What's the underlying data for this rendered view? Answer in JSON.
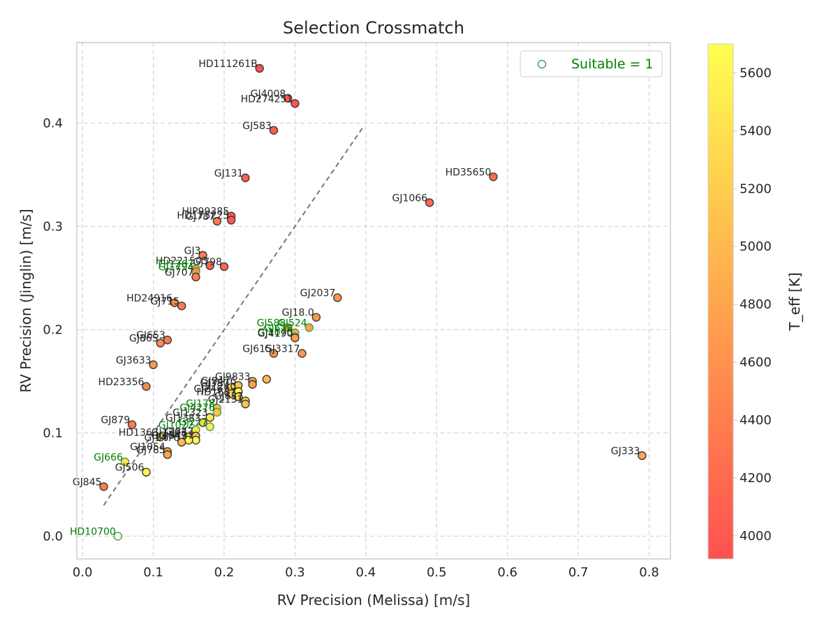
{
  "chart_data": {
    "type": "scatter",
    "title": "Selection Crossmatch",
    "xlabel": "RV Precision (Melissa) [m/s]",
    "ylabel": "RV Precision (Jinglin) [m/s]",
    "xlim": [
      -0.008,
      0.83
    ],
    "ylim": [
      -0.022,
      0.478
    ],
    "xticks": [
      "0.0",
      "0.1",
      "0.2",
      "0.3",
      "0.4",
      "0.5",
      "0.6",
      "0.7",
      "0.8"
    ],
    "yticks": [
      "0.0",
      "0.1",
      "0.2",
      "0.3",
      "0.4"
    ],
    "grid": true,
    "legend": {
      "label": "Suitable = 1",
      "placement": "upper right",
      "color": "#4a9e4a",
      "text_color": "#008000"
    },
    "colorbar": {
      "label": "T_eff [K]",
      "min": 3920,
      "max": 5700,
      "ticks": [
        "4000",
        "4200",
        "4400",
        "4600",
        "4800",
        "5000",
        "5200",
        "5400",
        "5600"
      ],
      "colors": [
        "#ff5050",
        "#ffa64d",
        "#ffff50"
      ]
    },
    "reference_line": {
      "x": [
        0.03,
        0.395
      ],
      "y": [
        0.03,
        0.395
      ],
      "style": "dashed",
      "color": "#777777"
    },
    "points": [
      {
        "x": 0.25,
        "y": 0.453,
        "teff": 3950,
        "label": "HD111261B",
        "suitable": 0
      },
      {
        "x": 0.29,
        "y": 0.424,
        "teff": 4000,
        "label": "GJ4008",
        "suitable": 0
      },
      {
        "x": 0.3,
        "y": 0.419,
        "teff": 3950,
        "label": "HD274251",
        "suitable": 0
      },
      {
        "x": 0.27,
        "y": 0.393,
        "teff": 4050,
        "label": "GJ583",
        "suitable": 0
      },
      {
        "x": 0.23,
        "y": 0.347,
        "teff": 4050,
        "label": "GJ131",
        "suitable": 0
      },
      {
        "x": 0.58,
        "y": 0.348,
        "teff": 4200,
        "label": "HD35650",
        "suitable": 0
      },
      {
        "x": 0.49,
        "y": 0.323,
        "teff": 4150,
        "label": "GJ1066",
        "suitable": 0
      },
      {
        "x": 0.21,
        "y": 0.31,
        "teff": 3950,
        "label": "HIP99385",
        "suitable": 0
      },
      {
        "x": 0.21,
        "y": 0.306,
        "teff": 4000,
        "label": "HD175225",
        "suitable": 0
      },
      {
        "x": 0.19,
        "y": 0.305,
        "teff": 4350,
        "label": "GJ787",
        "suitable": 0
      },
      {
        "x": 0.17,
        "y": 0.272,
        "teff": 4400,
        "label": "GJ3",
        "suitable": 0
      },
      {
        "x": 0.2,
        "y": 0.261,
        "teff": 4150,
        "label": "GJ798",
        "suitable": 0
      },
      {
        "x": 0.18,
        "y": 0.262,
        "teff": 4150,
        "label": "HD221503",
        "suitable": 0
      },
      {
        "x": 0.16,
        "y": 0.259,
        "teff": 4550,
        "label": "GJ1267",
        "suitable": 1
      },
      {
        "x": 0.16,
        "y": 0.256,
        "teff": 4600,
        "label": "GJ1794",
        "suitable": 1
      },
      {
        "x": 0.16,
        "y": 0.251,
        "teff": 4400,
        "label": "GJ707",
        "suitable": 0
      },
      {
        "x": 0.13,
        "y": 0.226,
        "teff": 4500,
        "label": "HD24916",
        "suitable": 0
      },
      {
        "x": 0.14,
        "y": 0.223,
        "teff": 4400,
        "label": "GJ715",
        "suitable": 0
      },
      {
        "x": 0.36,
        "y": 0.231,
        "teff": 4650,
        "label": "GJ2037",
        "suitable": 0
      },
      {
        "x": 0.33,
        "y": 0.212,
        "teff": 4650,
        "label": "GJ18.0",
        "suitable": 0
      },
      {
        "x": 0.32,
        "y": 0.202,
        "teff": 4750,
        "label": "GJ524",
        "suitable": 1
      },
      {
        "x": 0.29,
        "y": 0.202,
        "teff": 4800,
        "label": "GJ588",
        "suitable": 1
      },
      {
        "x": 0.3,
        "y": 0.197,
        "teff": 4850,
        "label": "GJ638",
        "suitable": 1
      },
      {
        "x": 0.3,
        "y": 0.193,
        "teff": 4700,
        "label": "GJ1070",
        "suitable": 1
      },
      {
        "x": 0.3,
        "y": 0.192,
        "teff": 4700,
        "label": "GJ4190",
        "suitable": 0
      },
      {
        "x": 0.27,
        "y": 0.177,
        "teff": 4700,
        "label": "GJ615",
        "suitable": 0
      },
      {
        "x": 0.31,
        "y": 0.177,
        "teff": 4650,
        "label": "GJ3317",
        "suitable": 0
      },
      {
        "x": 0.12,
        "y": 0.19,
        "teff": 4350,
        "label": "GJ653",
        "suitable": 0
      },
      {
        "x": 0.11,
        "y": 0.187,
        "teff": 4500,
        "label": "GJ865",
        "suitable": 0
      },
      {
        "x": 0.1,
        "y": 0.166,
        "teff": 4700,
        "label": "GJ3633",
        "suitable": 0
      },
      {
        "x": 0.09,
        "y": 0.145,
        "teff": 4500,
        "label": "HD23356",
        "suitable": 0
      },
      {
        "x": 0.24,
        "y": 0.15,
        "teff": 4900,
        "label": "GJ9833",
        "suitable": 0
      },
      {
        "x": 0.26,
        "y": 0.152,
        "teff": 5000,
        "label": "",
        "suitable": 0
      },
      {
        "x": 0.24,
        "y": 0.147,
        "teff": 4750,
        "label": "",
        "suitable": 0
      },
      {
        "x": 0.22,
        "y": 0.146,
        "teff": 5100,
        "label": "GJ9476",
        "suitable": 0
      },
      {
        "x": 0.21,
        "y": 0.144,
        "teff": 5300,
        "label": "GJ380",
        "suitable": 0
      },
      {
        "x": 0.22,
        "y": 0.14,
        "teff": 5600,
        "label": "GJ1240",
        "suitable": 0
      },
      {
        "x": 0.21,
        "y": 0.138,
        "teff": 5200,
        "label": "GJ2461",
        "suitable": 0
      },
      {
        "x": 0.22,
        "y": 0.135,
        "teff": 5400,
        "label": "HD1687",
        "suitable": 0
      },
      {
        "x": 0.23,
        "y": 0.131,
        "teff": 5300,
        "label": "GJ637",
        "suitable": 0
      },
      {
        "x": 0.23,
        "y": 0.128,
        "teff": 5100,
        "label": "GJ2131",
        "suitable": 0
      },
      {
        "x": 0.19,
        "y": 0.124,
        "teff": 5000,
        "label": "GJ178",
        "suitable": 1
      },
      {
        "x": 0.19,
        "y": 0.12,
        "teff": 5100,
        "label": "GJ4276",
        "suitable": 1
      },
      {
        "x": 0.18,
        "y": 0.115,
        "teff": 5500,
        "label": "GJ1323",
        "suitable": 0
      },
      {
        "x": 0.17,
        "y": 0.11,
        "teff": 5200,
        "label": "GJ1383",
        "suitable": 0
      },
      {
        "x": 0.18,
        "y": 0.106,
        "teff": 5500,
        "label": "GJ227",
        "suitable": 1
      },
      {
        "x": 0.16,
        "y": 0.103,
        "teff": 5400,
        "label": "GJ1022",
        "suitable": 1
      },
      {
        "x": 0.11,
        "y": 0.096,
        "teff": 5300,
        "label": "HD1363",
        "suitable": 0
      },
      {
        "x": 0.15,
        "y": 0.096,
        "teff": 5500,
        "label": "GJ1303",
        "suitable": 0
      },
      {
        "x": 0.16,
        "y": 0.097,
        "teff": 5000,
        "label": "GJ847",
        "suitable": 0
      },
      {
        "x": 0.16,
        "y": 0.093,
        "teff": 5600,
        "label": "GJ9497",
        "suitable": 0
      },
      {
        "x": 0.15,
        "y": 0.093,
        "teff": 5700,
        "label": "GJ4047",
        "suitable": 0
      },
      {
        "x": 0.14,
        "y": 0.091,
        "teff": 5000,
        "label": "GJ1476",
        "suitable": 0
      },
      {
        "x": 0.12,
        "y": 0.082,
        "teff": 4700,
        "label": "GJ1054",
        "suitable": 0
      },
      {
        "x": 0.12,
        "y": 0.079,
        "teff": 4800,
        "label": "GJ785",
        "suitable": 0
      },
      {
        "x": 0.07,
        "y": 0.108,
        "teff": 4400,
        "label": "GJ879",
        "suitable": 0
      },
      {
        "x": 0.06,
        "y": 0.072,
        "teff": 5400,
        "label": "GJ666",
        "suitable": 1
      },
      {
        "x": 0.09,
        "y": 0.062,
        "teff": 5600,
        "label": "GJ506",
        "suitable": 0
      },
      {
        "x": 0.03,
        "y": 0.048,
        "teff": 4400,
        "label": "GJ845",
        "suitable": 0
      },
      {
        "x": 0.05,
        "y": 0.0,
        "teff": 5000,
        "label": "HD10700",
        "suitable": 1
      },
      {
        "x": 0.79,
        "y": 0.078,
        "teff": 4800,
        "label": "GJ333",
        "suitable": 0
      }
    ]
  }
}
